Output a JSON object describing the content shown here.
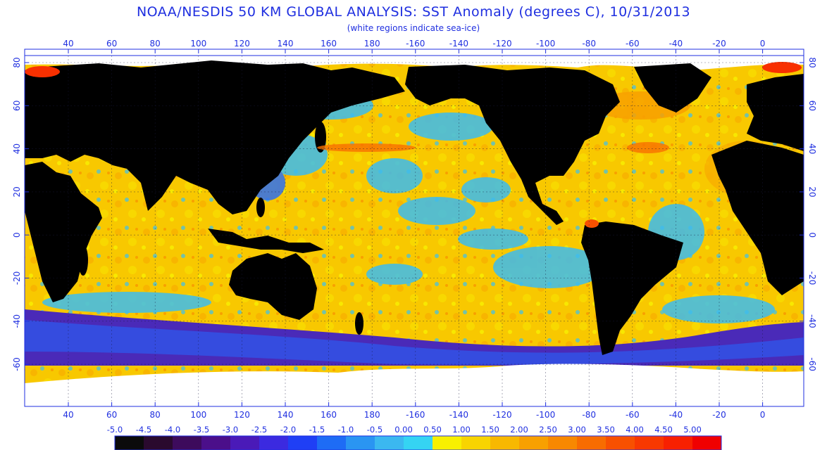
{
  "title": "NOAA/NESDIS 50 KM GLOBAL ANALYSIS: SST Anomaly (degrees C), 10/31/2013",
  "subtitle": "(white regions indicate sea-ice)",
  "lon_ticks": [
    "40",
    "60",
    "80",
    "100",
    "120",
    "140",
    "160",
    "180",
    "-160",
    "-140",
    "-120",
    "-100",
    "-80",
    "-60",
    "-40",
    "-20",
    "0"
  ],
  "lat_ticks_left": [
    "80",
    "60",
    "40",
    "20",
    "0",
    "-20",
    "-40",
    "-60"
  ],
  "lat_ticks_right": [
    "80",
    "60",
    "40",
    "20",
    "0",
    "-20",
    "-40",
    "-60"
  ],
  "colorbar": {
    "labels": [
      "-5.0",
      "-4.5",
      "-4.0",
      "-3.5",
      "-3.0",
      "-2.5",
      "-2.0",
      "-1.5",
      "-1.0",
      "-0.5",
      "0.00",
      "0.50",
      "1.00",
      "1.50",
      "2.00",
      "2.50",
      "3.00",
      "3.50",
      "4.00",
      "4.50",
      "5.00"
    ],
    "colors": [
      "#0b0b0b",
      "#2a0a2e",
      "#3d0b5c",
      "#4b0f8a",
      "#4a1ab8",
      "#3b2ae0",
      "#1f3ff5",
      "#1e6cf5",
      "#2a95f2",
      "#3bb8f0",
      "#35d4f3",
      "#f8f000",
      "#f8d400",
      "#f8b800",
      "#f8a000",
      "#f88800",
      "#f86c00",
      "#f85000",
      "#f83800",
      "#f82000",
      "#f00000"
    ]
  },
  "legend_colors": {
    "land": "#000000",
    "sea_ice": "#ffffff",
    "ocean_base": "#f8c400",
    "cold_band": "#4a2ab8",
    "axis": "#1f2fe0"
  }
}
